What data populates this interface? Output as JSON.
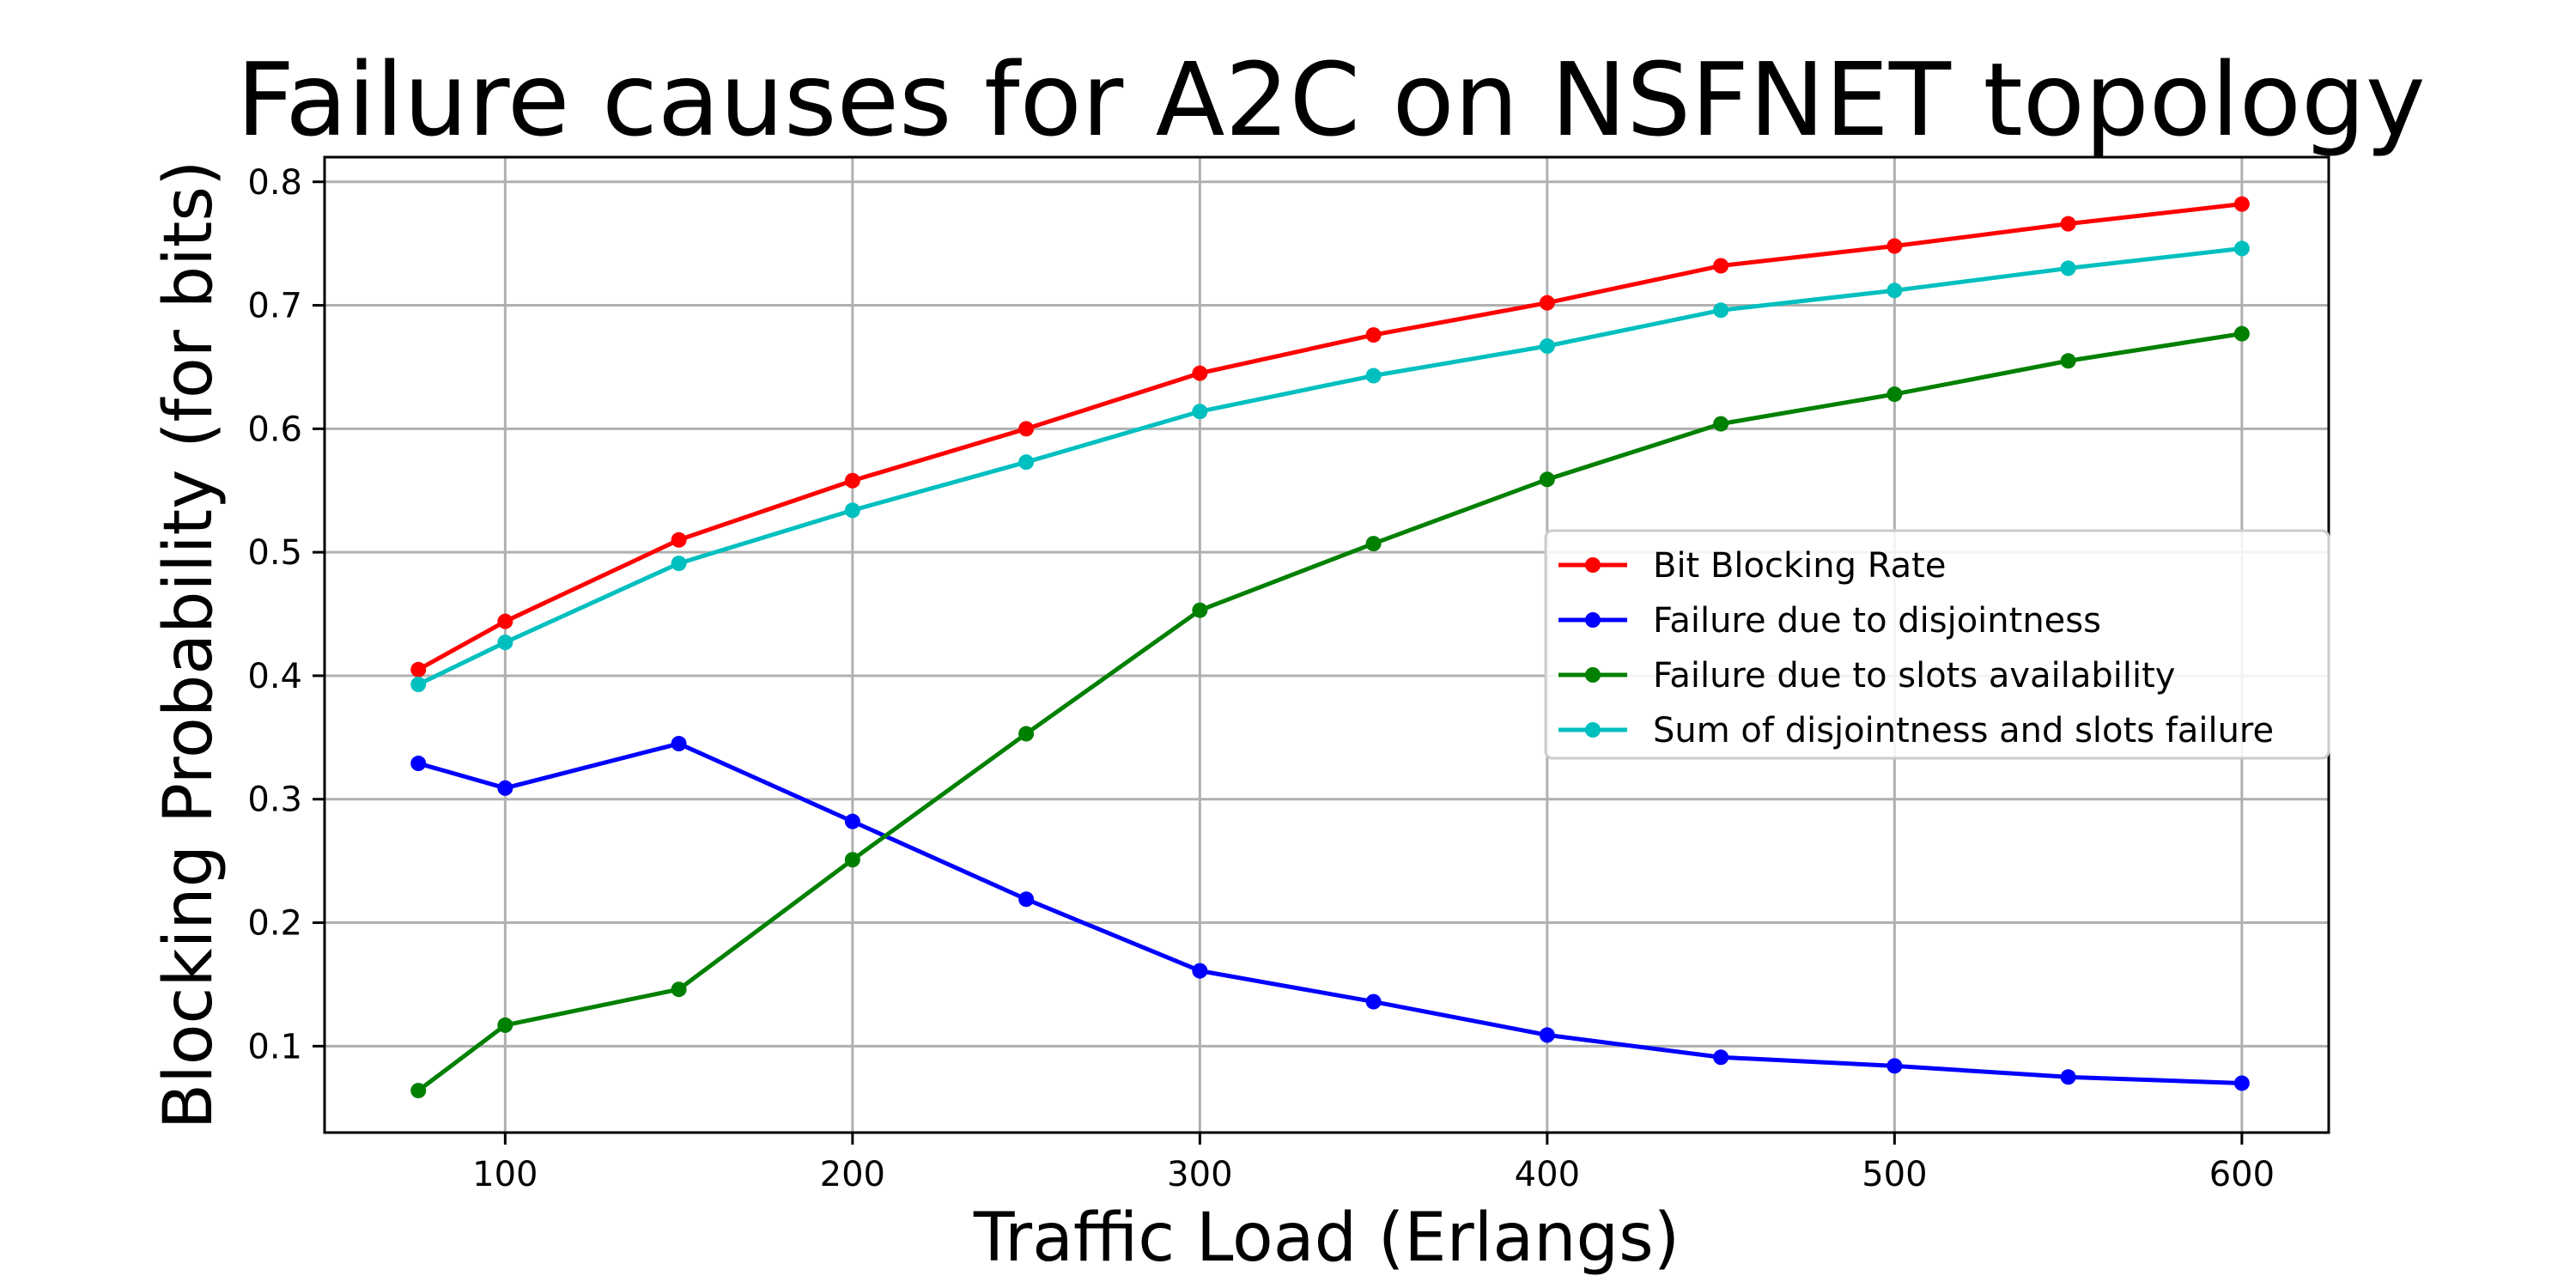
{
  "chart_data": {
    "type": "line",
    "title": "Failure causes for A2C on NSFNET topology",
    "xlabel": "Traffic Load (Erlangs)",
    "ylabel": "Blocking Probability (for bits)",
    "x": [
      75,
      100,
      150,
      200,
      250,
      300,
      350,
      400,
      450,
      500,
      550,
      600
    ],
    "xlim": [
      48,
      625
    ],
    "ylim": [
      0.03,
      0.82
    ],
    "xticks": [
      100,
      200,
      300,
      400,
      500,
      600
    ],
    "xtick_labels": [
      "100",
      "200",
      "300",
      "400",
      "500",
      "600"
    ],
    "yticks": [
      0.1,
      0.2,
      0.3,
      0.4,
      0.5,
      0.6,
      0.7,
      0.8
    ],
    "ytick_labels": [
      "0.1",
      "0.2",
      "0.3",
      "0.4",
      "0.5",
      "0.6",
      "0.7",
      "0.8"
    ],
    "grid": true,
    "legend_position": "center-right",
    "series": [
      {
        "name": "Bit Blocking Rate",
        "color": "#ff0000",
        "values": [
          0.405,
          0.444,
          0.51,
          0.558,
          0.6,
          0.645,
          0.676,
          0.702,
          0.732,
          0.748,
          0.766,
          0.782
        ]
      },
      {
        "name": "Failure due to disjointness",
        "color": "#0000ff",
        "values": [
          0.329,
          0.309,
          0.345,
          0.282,
          0.219,
          0.161,
          0.136,
          0.109,
          0.091,
          0.084,
          0.075,
          0.07
        ]
      },
      {
        "name": "Failure due to slots availability",
        "color": "#008000",
        "values": [
          0.064,
          0.117,
          0.146,
          0.251,
          0.353,
          0.453,
          0.507,
          0.559,
          0.604,
          0.628,
          0.655,
          0.677
        ]
      },
      {
        "name": "Sum of disjointness and slots failure",
        "color": "#00bfbf",
        "values": [
          0.393,
          0.427,
          0.491,
          0.534,
          0.573,
          0.614,
          0.643,
          0.667,
          0.696,
          0.712,
          0.73,
          0.746
        ]
      }
    ]
  }
}
